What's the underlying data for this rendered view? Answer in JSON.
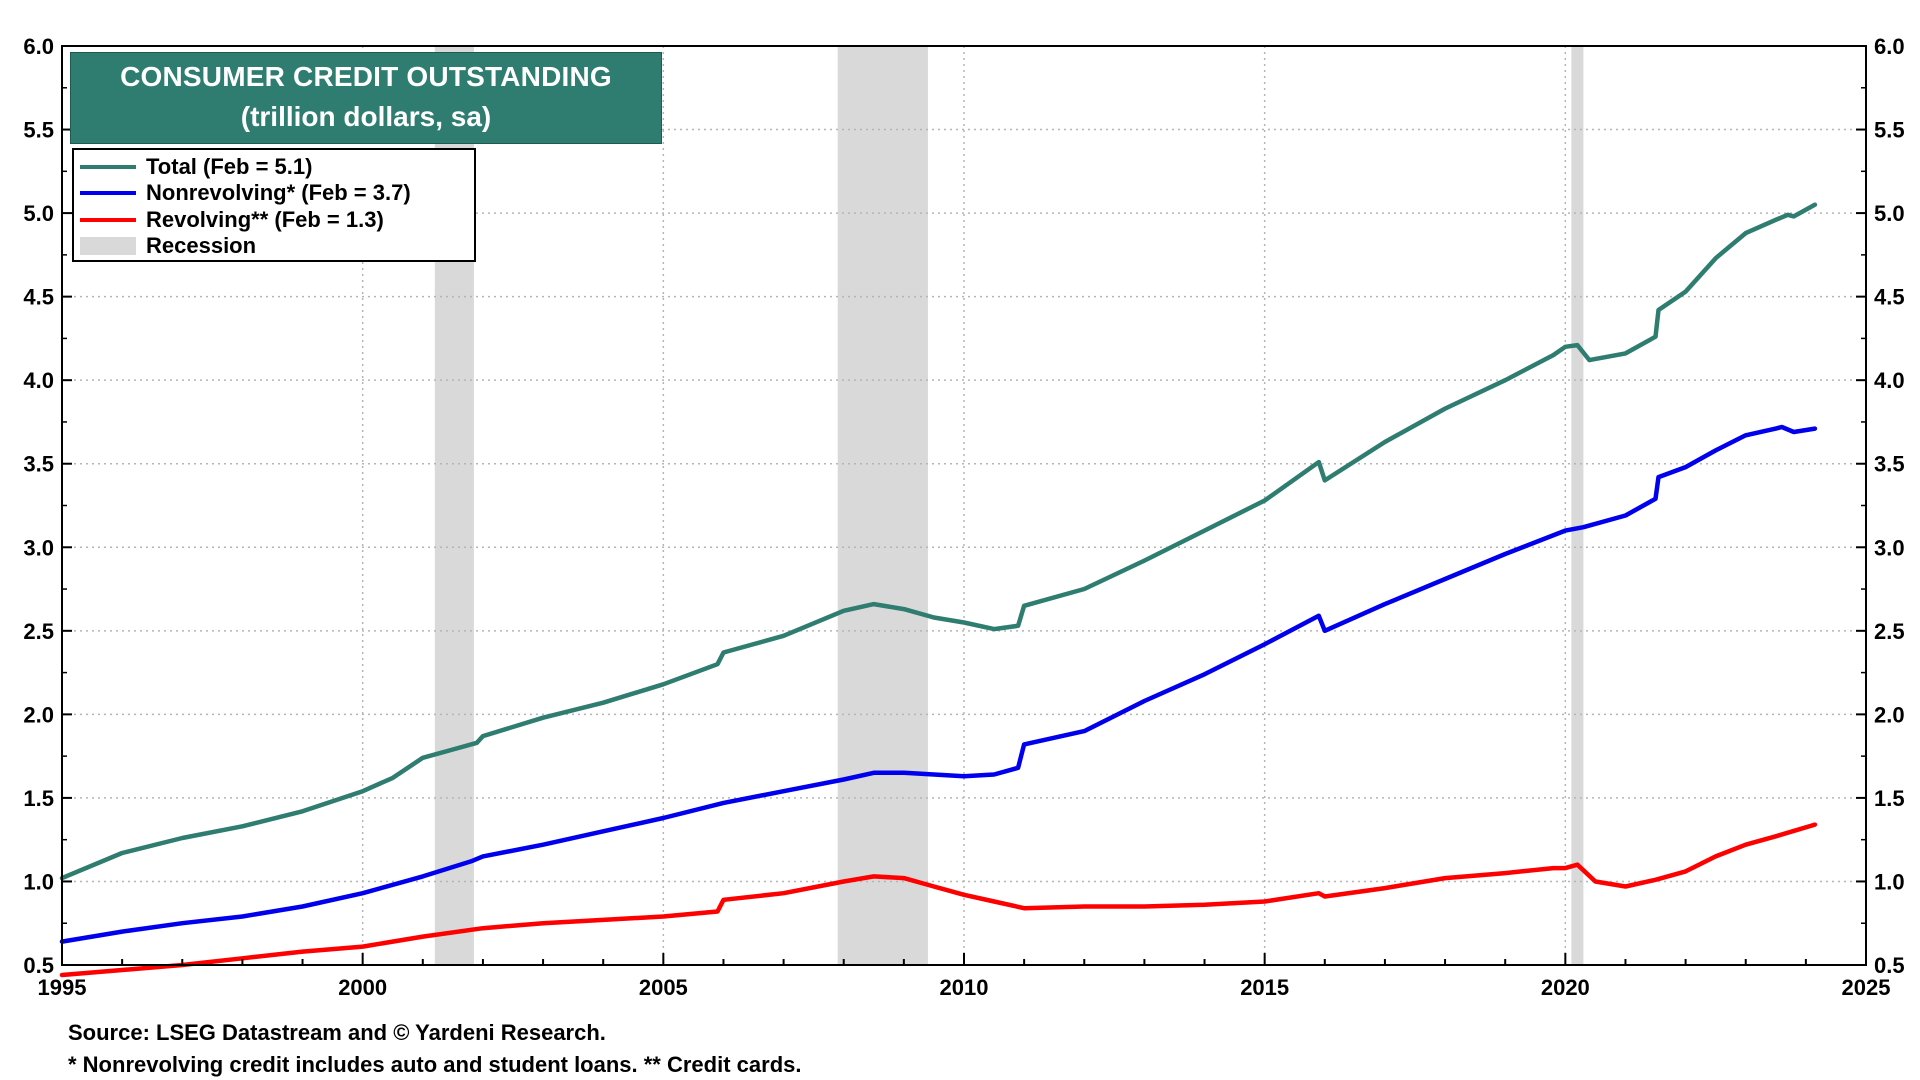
{
  "chart_data": {
    "type": "line",
    "title": "CONSUMER CREDIT OUTSTANDING",
    "subtitle": "(trillion dollars, sa)",
    "xlabel": "",
    "ylabel": "",
    "xlim": [
      1995,
      2025
    ],
    "ylim": [
      0.5,
      6.0
    ],
    "x_ticks": [
      "1995",
      "2000",
      "2005",
      "2010",
      "2015",
      "2020",
      "2025"
    ],
    "x_tick_values": [
      1995,
      2000,
      2005,
      2010,
      2015,
      2020,
      2025
    ],
    "y_ticks": [
      "0.5",
      "1.0",
      "1.5",
      "2.0",
      "2.5",
      "3.0",
      "3.5",
      "4.0",
      "4.5",
      "5.0",
      "5.5",
      "6.0"
    ],
    "y_tick_values": [
      0.5,
      1.0,
      1.5,
      2.0,
      2.5,
      3.0,
      3.5,
      4.0,
      4.5,
      5.0,
      5.5,
      6.0
    ],
    "grid": true,
    "legend_position": "top-left",
    "recessions": [
      {
        "start": 2001.2,
        "end": 2001.85
      },
      {
        "start": 2007.9,
        "end": 2009.4
      },
      {
        "start": 2020.1,
        "end": 2020.3
      }
    ],
    "recession_label": "Recession",
    "recession_color": "#d9d9d9",
    "series": [
      {
        "name": "Total",
        "legend": "Total  (Feb = 5.1)",
        "color": "#2e7d70",
        "x": [
          1995,
          1996,
          1997,
          1998,
          1999,
          2000,
          2000.5,
          2001,
          2001.5,
          2001.9,
          2002,
          2003,
          2004,
          2005,
          2005.9,
          2006,
          2007,
          2008,
          2008.5,
          2009,
          2009.5,
          2010,
          2010.5,
          2010.9,
          2011,
          2012,
          2013,
          2014,
          2015,
          2015.9,
          2016,
          2017,
          2018,
          2019,
          2019.8,
          2020,
          2020.2,
          2020.4,
          2021,
          2021.5,
          2021.55,
          2022,
          2022.5,
          2023,
          2023.5,
          2023.7,
          2023.8,
          2024.15
        ],
        "values": [
          1.02,
          1.17,
          1.26,
          1.33,
          1.42,
          1.54,
          1.62,
          1.74,
          1.79,
          1.83,
          1.87,
          1.98,
          2.07,
          2.18,
          2.3,
          2.37,
          2.47,
          2.62,
          2.66,
          2.63,
          2.58,
          2.55,
          2.51,
          2.53,
          2.65,
          2.75,
          2.92,
          3.1,
          3.28,
          3.51,
          3.4,
          3.63,
          3.83,
          4.0,
          4.15,
          4.2,
          4.21,
          4.12,
          4.16,
          4.26,
          4.42,
          4.53,
          4.73,
          4.88,
          4.96,
          4.99,
          4.98,
          5.05
        ]
      },
      {
        "name": "Nonrevolving",
        "legend": "Nonrevolving* (Feb = 3.7)",
        "color": "#0000ee",
        "x": [
          1995,
          1996,
          1997,
          1998,
          1999,
          2000,
          2001,
          2001.8,
          2002,
          2003,
          2004,
          2005,
          2006,
          2007,
          2008,
          2008.5,
          2009,
          2009.5,
          2010,
          2010.5,
          2010.9,
          2011,
          2012,
          2013,
          2014,
          2015,
          2015.9,
          2016,
          2017,
          2018,
          2019,
          2020,
          2020.3,
          2021,
          2021.5,
          2021.55,
          2022,
          2022.5,
          2023,
          2023.5,
          2023.6,
          2023.8,
          2024.15
        ],
        "values": [
          0.64,
          0.7,
          0.75,
          0.79,
          0.85,
          0.93,
          1.03,
          1.12,
          1.15,
          1.22,
          1.3,
          1.38,
          1.47,
          1.54,
          1.61,
          1.65,
          1.65,
          1.64,
          1.63,
          1.64,
          1.68,
          1.82,
          1.9,
          2.08,
          2.24,
          2.42,
          2.59,
          2.5,
          2.66,
          2.81,
          2.96,
          3.1,
          3.12,
          3.19,
          3.29,
          3.42,
          3.48,
          3.58,
          3.67,
          3.71,
          3.72,
          3.69,
          3.71
        ]
      },
      {
        "name": "Revolving",
        "legend": "Revolving** (Feb = 1.3)",
        "color": "#ff0000",
        "x": [
          1995,
          1996,
          1997,
          1998,
          1999,
          2000,
          2001,
          2002,
          2003,
          2004,
          2005,
          2005.9,
          2006,
          2007,
          2008,
          2008.5,
          2009,
          2009.5,
          2010,
          2010.5,
          2011,
          2012,
          2013,
          2014,
          2015,
          2015.9,
          2016,
          2017,
          2018,
          2019,
          2019.8,
          2020,
          2020.2,
          2020.5,
          2021,
          2021.5,
          2022,
          2022.5,
          2023,
          2023.5,
          2024.15
        ],
        "values": [
          0.44,
          0.47,
          0.5,
          0.54,
          0.58,
          0.61,
          0.67,
          0.72,
          0.75,
          0.77,
          0.79,
          0.82,
          0.89,
          0.93,
          1.0,
          1.03,
          1.02,
          0.97,
          0.92,
          0.88,
          0.84,
          0.85,
          0.85,
          0.86,
          0.88,
          0.93,
          0.91,
          0.96,
          1.02,
          1.05,
          1.08,
          1.08,
          1.1,
          1.0,
          0.97,
          1.01,
          1.06,
          1.15,
          1.22,
          1.27,
          1.34
        ]
      }
    ]
  },
  "footnotes": {
    "source": "Source: LSEG Datastream and © Yardeni Research.",
    "note": "* Nonrevolving credit includes auto and student loans. ** Credit cards."
  }
}
